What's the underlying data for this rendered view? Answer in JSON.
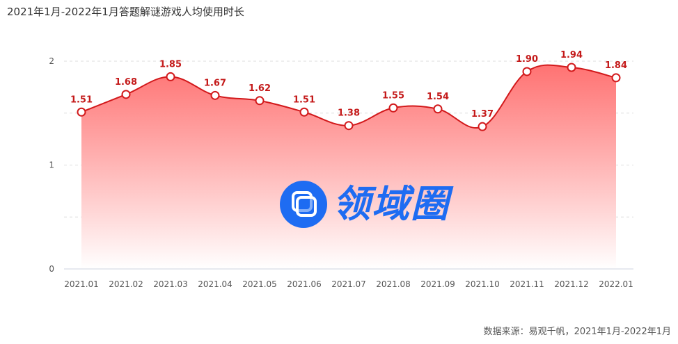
{
  "title": "2021年1月-2022年1月答题解谜游戏人均使用时长",
  "source_note": "数据来源：易观千帆，2021年1月-2022年1月",
  "watermark": {
    "text": "领域圈",
    "icon": "logo-square-icon"
  },
  "colors": {
    "line": "#d2191b",
    "fill_top": "#ff6b6b",
    "fill_bottom": "#ffffff",
    "marker_fill": "#ffffff",
    "label": "#c41a1a"
  },
  "chart_data": {
    "type": "area",
    "title": "2021年1月-2022年1月答题解谜游戏人均使用时长",
    "xlabel": "",
    "ylabel": "",
    "ylim": [
      0,
      2
    ],
    "yticks": [
      0,
      1,
      2
    ],
    "grid": true,
    "legend": "none",
    "categories": [
      "2021.01",
      "2021.02",
      "2021.03",
      "2021.04",
      "2021.05",
      "2021.06",
      "2021.07",
      "2021.08",
      "2021.09",
      "2021.10",
      "2021.11",
      "2021.12",
      "2022.01"
    ],
    "values": [
      1.51,
      1.68,
      1.85,
      1.67,
      1.62,
      1.51,
      1.38,
      1.55,
      1.54,
      1.37,
      1.9,
      1.94,
      1.84
    ],
    "value_labels": [
      "1.51",
      "1.68",
      "1.85",
      "1.67",
      "1.62",
      "1.51",
      "1.38",
      "1.55",
      "1.54",
      "1.37",
      "1.90",
      "1.94",
      "1.84"
    ]
  }
}
